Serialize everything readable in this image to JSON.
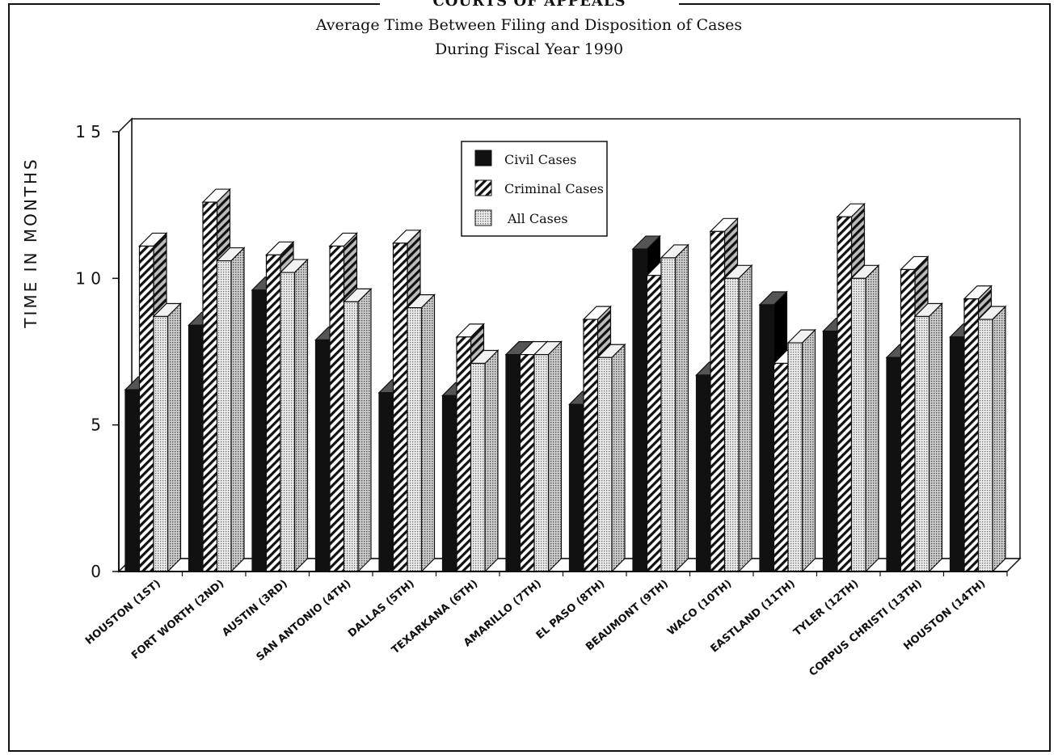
{
  "header": {
    "title": "COURTS OF APPEALS",
    "subtitle_line1": "Average Time Between Filing and Disposition of Cases",
    "subtitle_line2": "During Fiscal Year 1990"
  },
  "chart_data": {
    "type": "bar",
    "title": "COURTS OF APPEALS",
    "subtitle": "Average Time Between Filing and Disposition of Cases During Fiscal Year 1990",
    "xlabel": "",
    "ylabel": "TIME IN MONTHS",
    "ylim": [
      0,
      15
    ],
    "yticks": [
      0,
      5,
      10,
      15
    ],
    "ytick_labels": [
      "0",
      "5",
      "1 0",
      "1 5"
    ],
    "grid": false,
    "legend_position": "top-center",
    "categories": [
      "HOUSTON (1ST)",
      "FORT WORTH (2ND)",
      "AUSTIN (3RD)",
      "SAN ANTONIO (4TH)",
      "DALLAS (5TH)",
      "TEXARKANA (6TH)",
      "AMARILLO (7TH)",
      "EL PASO (8TH)",
      "BEAUMONT (9TH)",
      "WACO (10TH)",
      "EASTLAND (11TH)",
      "TYLER (12TH)",
      "CORPUS CHRISTI (13TH)",
      "HOUSTON (14TH)"
    ],
    "series": [
      {
        "name": "Civil Cases",
        "fill": "solid",
        "color": "#111111",
        "values": [
          6.2,
          8.4,
          9.6,
          7.9,
          6.1,
          6.0,
          7.4,
          5.7,
          11.0,
          6.7,
          9.1,
          8.2,
          7.3,
          8.0
        ]
      },
      {
        "name": "Criminal Cases",
        "fill": "diagonal-hatch",
        "color": "#333333",
        "values": [
          11.1,
          12.6,
          10.8,
          11.1,
          11.2,
          8.0,
          7.4,
          8.6,
          10.1,
          11.6,
          7.1,
          12.1,
          10.3,
          9.3
        ]
      },
      {
        "name": "All Cases",
        "fill": "dotted",
        "color": "#bdbdbd",
        "values": [
          8.7,
          10.6,
          10.2,
          9.2,
          9.0,
          7.1,
          7.4,
          7.3,
          10.7,
          10.0,
          7.8,
          10.0,
          8.7,
          8.6
        ]
      }
    ]
  }
}
